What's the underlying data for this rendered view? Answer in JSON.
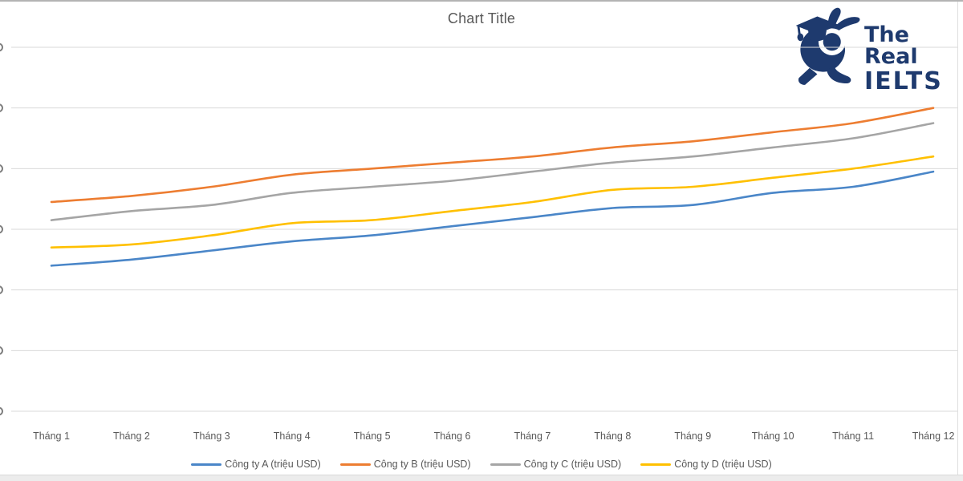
{
  "window": {
    "top_edge_color": "#b3b3b3",
    "bottom_edge_color": "#ececec"
  },
  "logo": {
    "line1": "The Real",
    "line2": "IELTS",
    "color": "#1e3a6e",
    "mascot": "rabbit-graduate-mascot"
  },
  "chart_data": {
    "type": "line",
    "title": "Chart Title",
    "categories": [
      "Tháng 1",
      "Tháng 2",
      "Tháng 3",
      "Tháng 4",
      "Tháng 5",
      "Tháng 6",
      "Tháng 7",
      "Tháng 8",
      "Tháng 9",
      "Tháng 10",
      "Tháng 11",
      "Tháng 12"
    ],
    "series": [
      {
        "name": "Công ty A (triệu USD)",
        "color": "#4a86c8",
        "values": [
          24,
          25,
          26.5,
          28,
          29,
          30.5,
          32,
          33.5,
          34,
          36,
          37,
          39.5
        ]
      },
      {
        "name": "Công ty B (triệu USD)",
        "color": "#ed7d31",
        "values": [
          34.5,
          35.5,
          37,
          39,
          40,
          41,
          42,
          43.5,
          44.5,
          46,
          47.5,
          50
        ]
      },
      {
        "name": "Công ty C (triệu USD)",
        "color": "#a5a5a5",
        "values": [
          31.5,
          33,
          34,
          36,
          37,
          38,
          39.5,
          41,
          42,
          43.5,
          45,
          47.5
        ]
      },
      {
        "name": "Công ty D (triệu USD)",
        "color": "#ffc000",
        "values": [
          27,
          27.5,
          29,
          31,
          31.5,
          33,
          34.5,
          36.5,
          37,
          38.5,
          40,
          42
        ]
      }
    ],
    "xlabel": "",
    "ylabel": "",
    "y_axis": {
      "min": 0,
      "max": 60,
      "step": 10,
      "tick_labels_cut_off_at_left_edge": true
    },
    "grid": true,
    "gridline_color": "#d9d9d9",
    "tick_sliver_color": "#7f7f7f",
    "text_color": "#595959",
    "legend_position": "bottom",
    "smoothed_lines": true
  }
}
